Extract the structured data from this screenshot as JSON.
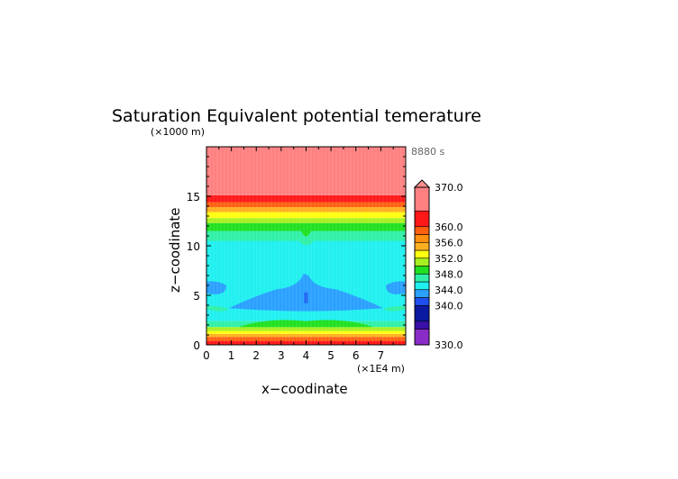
{
  "chart_data": {
    "type": "heatmap",
    "title": "Saturation Equivalent potential temerature",
    "time_label": "8880 s",
    "xlabel": "x−coodinate",
    "ylabel": "z−coodinate",
    "x_unit": "(×1E4 m)",
    "y_unit": "(×1000 m)",
    "xlim": [
      0,
      8
    ],
    "ylim": [
      0,
      20
    ],
    "xticks": [
      "0",
      "1",
      "2",
      "3",
      "4",
      "5",
      "6",
      "7"
    ],
    "yticks": [
      "0",
      "5",
      "10",
      "15"
    ],
    "colorbar": {
      "range": [
        330,
        370
      ],
      "labels": [
        "330.0",
        "340.0",
        "344.0",
        "348.0",
        "352.0",
        "356.0",
        "360.0",
        "370.0"
      ],
      "label_values": [
        330,
        340,
        344,
        348,
        352,
        356,
        360,
        370
      ],
      "bands": [
        {
          "from": 330,
          "to": 334,
          "color": "#8a2cc8"
        },
        {
          "from": 334,
          "to": 336,
          "color": "#3a10a8"
        },
        {
          "from": 336,
          "to": 340,
          "color": "#0a1aa0"
        },
        {
          "from": 340,
          "to": 342,
          "color": "#1e50f0"
        },
        {
          "from": 342,
          "to": 344,
          "color": "#2aa0ff"
        },
        {
          "from": 344,
          "to": 346,
          "color": "#20f0f0"
        },
        {
          "from": 346,
          "to": 348,
          "color": "#30f0a8"
        },
        {
          "from": 348,
          "to": 350,
          "color": "#20e020"
        },
        {
          "from": 350,
          "to": 352,
          "color": "#a8f020"
        },
        {
          "from": 352,
          "to": 354,
          "color": "#ffff10"
        },
        {
          "from": 354,
          "to": 356,
          "color": "#ffb020"
        },
        {
          "from": 356,
          "to": 358,
          "color": "#ff9010"
        },
        {
          "from": 358,
          "to": 360,
          "color": "#ff6010"
        },
        {
          "from": 360,
          "to": 364,
          "color": "#ff1818"
        },
        {
          "from": 364,
          "to": 370,
          "color": "#ff8080"
        }
      ]
    },
    "layers": [
      {
        "z0": 0,
        "z1": 0.4,
        "value": 361
      },
      {
        "z0": 0.4,
        "z1": 0.8,
        "value": 359
      },
      {
        "z0": 0.8,
        "z1": 1.1,
        "value": 355
      },
      {
        "z0": 1.1,
        "z1": 1.4,
        "value": 353
      },
      {
        "z0": 1.4,
        "z1": 1.8,
        "value": 351
      },
      {
        "z0": 1.8,
        "z1": 2.4,
        "value": 347
      },
      {
        "z0": 2.4,
        "z1": 10.5,
        "value": 345
      },
      {
        "z0": 10.5,
        "z1": 11.5,
        "value": 347
      },
      {
        "z0": 11.5,
        "z1": 12.3,
        "value": 349
      },
      {
        "z0": 12.3,
        "z1": 12.8,
        "value": 351
      },
      {
        "z0": 12.8,
        "z1": 13.4,
        "value": 353
      },
      {
        "z0": 13.4,
        "z1": 13.9,
        "value": 355
      },
      {
        "z0": 13.9,
        "z1": 14.4,
        "value": 359
      },
      {
        "z0": 14.4,
        "z1": 15.1,
        "value": 361
      },
      {
        "z0": 15.1,
        "z1": 20,
        "value": 366
      }
    ]
  }
}
